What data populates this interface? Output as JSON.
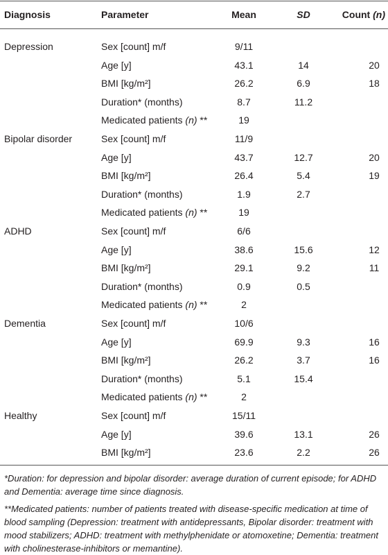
{
  "table": {
    "header": [
      "Diagnosis",
      "Parameter",
      "Mean",
      [
        {
          "text": "SD",
          "italic": true
        }
      ],
      [
        "Count ",
        {
          "text": "(n)",
          "italic": true
        }
      ]
    ],
    "groups": [
      {
        "diagnosis": "Depression",
        "rows": [
          [
            "Sex [count] m/f",
            "9/11",
            null,
            null
          ],
          [
            "Age [y]",
            43.1,
            14,
            20
          ],
          [
            "BMI [kg/m²]",
            26.2,
            6.9,
            18
          ],
          [
            "Duration* (months)",
            8.7,
            11.2,
            null
          ],
          [
            [
              "Medicated patients ",
              {
                "text": "(n)",
                "italic": true
              },
              " **"
            ],
            19,
            null,
            null
          ]
        ]
      },
      {
        "diagnosis": "Bipolar disorder",
        "rows": [
          [
            "Sex [count] m/f",
            "11/9",
            null,
            null
          ],
          [
            "Age [y]",
            43.7,
            12.7,
            20
          ],
          [
            "BMI [kg/m²]",
            26.4,
            5.4,
            19
          ],
          [
            "Duration* (months)",
            1.9,
            2.7,
            null
          ],
          [
            [
              "Medicated patients ",
              {
                "text": "(n)",
                "italic": true
              },
              " **"
            ],
            19,
            null,
            null
          ]
        ]
      },
      {
        "diagnosis": "ADHD",
        "rows": [
          [
            "Sex [count] m/f",
            "6/6",
            null,
            null
          ],
          [
            "Age [y]",
            38.6,
            15.6,
            12
          ],
          [
            "BMI [kg/m²]",
            29.1,
            9.2,
            11
          ],
          [
            "Duration* (months)",
            0.9,
            0.5,
            null
          ],
          [
            [
              "Medicated patients ",
              {
                "text": "(n)",
                "italic": true
              },
              " **"
            ],
            2,
            null,
            null
          ]
        ]
      },
      {
        "diagnosis": "Dementia",
        "rows": [
          [
            "Sex [count] m/f",
            "10/6",
            null,
            null
          ],
          [
            "Age [y]",
            69.9,
            9.3,
            16
          ],
          [
            "BMI [kg/m²]",
            26.2,
            3.7,
            16
          ],
          [
            "Duration* (months)",
            5.1,
            15.4,
            null
          ],
          [
            [
              "Medicated patients ",
              {
                "text": "(n)",
                "italic": true
              },
              " **"
            ],
            2,
            null,
            null
          ]
        ]
      },
      {
        "diagnosis": "Healthy",
        "rows": [
          [
            "Sex [count] m/f",
            "15/11",
            null,
            null
          ],
          [
            "Age [y]",
            39.6,
            13.1,
            26
          ],
          [
            "BMI [kg/m²]",
            23.6,
            2.2,
            26
          ]
        ]
      }
    ]
  },
  "footnotes": [
    "*Duration: for depression and bipolar disorder: average duration of current episode; for ADHD and Dementia: average time since diagnosis.",
    "**Medicated patients: number of patients treated with disease-specific medication at time of blood sampling (Depression: treatment with antidepressants, Bipolar disorder: treatment with mood stabilizers; ADHD: treatment with methylphenidate or atomoxetine; Dementia: treatment with cholinesterase-inhibitors or memantine)."
  ]
}
